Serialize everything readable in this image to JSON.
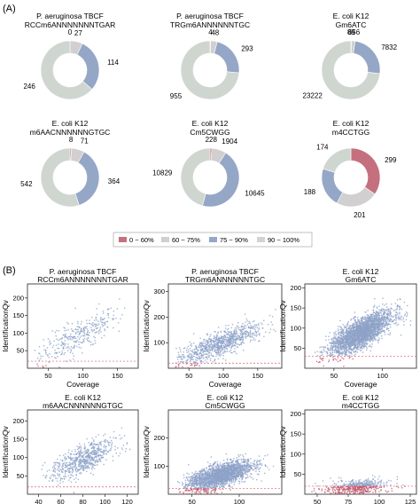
{
  "panel_labels": {
    "a": "(A)",
    "b": "(B)"
  },
  "colors": {
    "0~60": "#c4707e",
    "60~75": "#d1cfcf",
    "75~90": "#95a7c7",
    "90~100": "#cfd6d0",
    "scatter_point": "#8fa3c8",
    "scatter_low": "#c35b70",
    "threshold_line": "#e05a6a"
  },
  "legend": {
    "entries": [
      {
        "label": "0 ~ 60%",
        "color_key": "0~60"
      },
      {
        "label": "60 ~ 75%",
        "color_key": "60~75"
      },
      {
        "label": "75 ~ 90%",
        "color_key": "75~90"
      },
      {
        "label": "90 ~ 100%",
        "color_key": "90~100"
      }
    ]
  },
  "chart_data": [
    {
      "type": "pie",
      "subtype": "donut",
      "title": [
        "P. aeruginosa TBCF",
        "RCCm6ANNNNNNNTGAR"
      ],
      "slices": [
        {
          "bin": "0~60",
          "value": 0
        },
        {
          "bin": "60~75",
          "value": 27
        },
        {
          "bin": "75~90",
          "value": 114
        },
        {
          "bin": "90~100",
          "value": 246
        }
      ]
    },
    {
      "type": "pie",
      "subtype": "donut",
      "title": [
        "P. aeruginosa TBCF",
        "TRGm6ANNNNNNTGC"
      ],
      "slices": [
        {
          "bin": "0~60",
          "value": 4
        },
        {
          "bin": "60~75",
          "value": 48
        },
        {
          "bin": "75~90",
          "value": 293
        },
        {
          "bin": "90~100",
          "value": 955
        }
      ]
    },
    {
      "type": "pie",
      "subtype": "donut",
      "title": [
        "E. coli K12",
        "Gm6ATC"
      ],
      "slices": [
        {
          "bin": "0~60",
          "value": 89
        },
        {
          "bin": "60~75",
          "value": 656
        },
        {
          "bin": "75~90",
          "value": 7832
        },
        {
          "bin": "90~100",
          "value": 23222
        }
      ]
    },
    {
      "type": "pie",
      "subtype": "donut",
      "title": [
        "E. coli K12",
        "m6AACNNNNNNGTGC"
      ],
      "slices": [
        {
          "bin": "0~60",
          "value": 8
        },
        {
          "bin": "60~75",
          "value": 71
        },
        {
          "bin": "75~90",
          "value": 364
        },
        {
          "bin": "90~100",
          "value": 542
        }
      ]
    },
    {
      "type": "pie",
      "subtype": "donut",
      "title": [
        "E. coli K12",
        "Cm5CWGG"
      ],
      "slices": [
        {
          "bin": "0~60",
          "value": 228
        },
        {
          "bin": "60~75",
          "value": 1904
        },
        {
          "bin": "75~90",
          "value": 10645
        },
        {
          "bin": "90~100",
          "value": 10829
        }
      ]
    },
    {
      "type": "pie",
      "subtype": "donut",
      "title": [
        "E. coli K12",
        "m4CCTGG"
      ],
      "slices": [
        {
          "bin": "0~60",
          "value": 299
        },
        {
          "bin": "60~75",
          "value": 201
        },
        {
          "bin": "75~90",
          "value": 188
        },
        {
          "bin": "90~100",
          "value": 174
        }
      ]
    },
    {
      "type": "scatter",
      "title": [
        "P. aeruginosa TBCF",
        "RCCm6ANNNNNNNTGAR"
      ],
      "xlabel": "Coverage",
      "ylabel": "IdentificationQv",
      "xlim": [
        20,
        180
      ],
      "ylim": [
        0,
        240
      ],
      "xticks": [
        50,
        100,
        150
      ],
      "yticks": [
        50,
        100,
        150,
        200
      ],
      "threshold_y": 20,
      "cloud": {
        "n": 330,
        "x_mean": 95,
        "x_sd": 28,
        "slope": 1.02,
        "intercept": -4,
        "y_sd": 22,
        "x_min": 30,
        "x_max": 170
      }
    },
    {
      "type": "scatter",
      "title": [
        "P. aeruginosa TBCF",
        "TRGm6ANNNNNNTGC"
      ],
      "xlabel": "Coverage",
      "ylabel": "IdentificationQv",
      "xlim": [
        20,
        185
      ],
      "ylim": [
        0,
        330
      ],
      "xticks": [
        50,
        100,
        150
      ],
      "yticks": [
        100,
        200,
        300
      ],
      "threshold_y": 20,
      "cloud": {
        "n": 900,
        "x_mean": 95,
        "x_sd": 30,
        "slope": 1.05,
        "intercept": -5,
        "y_sd": 24,
        "x_min": 30,
        "x_max": 180
      }
    },
    {
      "type": "scatter",
      "title": [
        "E. coli K12",
        "Gm6ATC"
      ],
      "xlabel": "Coverage",
      "ylabel": "IdentificationQv",
      "xlim": [
        20,
        135
      ],
      "ylim": [
        0,
        210
      ],
      "xticks": [
        50,
        100
      ],
      "yticks": [
        50,
        100,
        150,
        200
      ],
      "threshold_y": 30,
      "cloud": {
        "n": 2600,
        "x_mean": 78,
        "x_sd": 16,
        "slope": 1.2,
        "intercept": -6,
        "y_sd": 18,
        "x_min": 30,
        "x_max": 130
      }
    },
    {
      "type": "scatter",
      "title": [
        "E. coli K12",
        "m6AACNNNNNNGTGC"
      ],
      "xlabel": "Coverage",
      "ylabel": "IdentificationQv",
      "xlim": [
        30,
        130
      ],
      "ylim": [
        0,
        230
      ],
      "xticks": [
        40,
        60,
        80,
        100,
        120
      ],
      "yticks": [
        50,
        100,
        150,
        200
      ],
      "threshold_y": 20,
      "cloud": {
        "n": 650,
        "x_mean": 80,
        "x_sd": 14,
        "slope": 1.3,
        "intercept": -10,
        "y_sd": 20,
        "x_min": 40,
        "x_max": 125
      }
    },
    {
      "type": "scatter",
      "title": [
        "E. coli K12",
        "Cm5CWGG"
      ],
      "xlabel": "Coverage",
      "ylabel": "IdentificationQv",
      "xlim": [
        25,
        145
      ],
      "ylim": [
        0,
        300
      ],
      "xticks": [
        50,
        100
      ],
      "yticks": [
        100,
        200
      ],
      "threshold_y": 20,
      "cloud": {
        "n": 2200,
        "x_mean": 80,
        "x_sd": 17,
        "slope": 0.95,
        "intercept": -10,
        "y_sd": 20,
        "x_min": 35,
        "x_max": 140
      }
    },
    {
      "type": "scatter",
      "title": [
        "E. coli K12",
        "m4CCTGG"
      ],
      "xlabel": "Coverage",
      "ylabel": "IdentificationQv",
      "xlim": [
        40,
        130
      ],
      "ylim": [
        0,
        210
      ],
      "xticks": [
        50,
        75,
        100,
        125
      ],
      "yticks": [
        50,
        100,
        150,
        200
      ],
      "threshold_y": 20,
      "cloud": {
        "n": 520,
        "x_mean": 82,
        "x_sd": 13,
        "slope": 0.18,
        "intercept": 4,
        "y_sd": 9,
        "x_min": 45,
        "x_max": 125
      }
    }
  ]
}
